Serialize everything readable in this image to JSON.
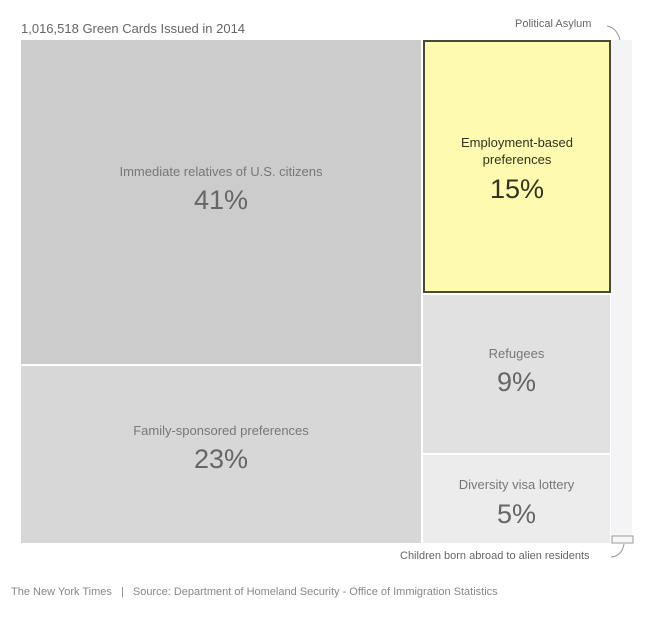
{
  "chart_data": {
    "type": "treemap",
    "title": "1,016,518 Green Cards Issued in 2014",
    "total": 1016518,
    "unit": "percent of green cards",
    "segments": [
      {
        "id": "immediate-relatives",
        "label": "Immediate relatives of U.S. citizens",
        "value": 41,
        "value_label": "41%",
        "color": "#cccccc",
        "highlight": false
      },
      {
        "id": "family-sponsored",
        "label": "Family-sponsored preferences",
        "value": 23,
        "value_label": "23%",
        "color": "#d7d7d7",
        "highlight": false
      },
      {
        "id": "employment-based",
        "label": "Employment-based preferences",
        "value": 15,
        "value_label": "15%",
        "color": "#fefbb0",
        "highlight": true
      },
      {
        "id": "refugees",
        "label": "Refugees",
        "value": 9,
        "value_label": "9%",
        "color": "#e1e1e1",
        "highlight": false
      },
      {
        "id": "diversity-lottery",
        "label": "Diversity visa lottery",
        "value": 5,
        "value_label": "5%",
        "color": "#ececec",
        "highlight": false
      },
      {
        "id": "political-asylum",
        "label": "Political Asylum",
        "value": null,
        "value_label": "",
        "color": "#f4f4f6",
        "highlight": false
      },
      {
        "id": "children-abroad",
        "label": "Children born abroad to alien residents",
        "value": null,
        "value_label": "",
        "color": "#f7f7f7",
        "highlight": false
      }
    ],
    "annotations": [
      "Political Asylum",
      "Children born abroad to alien residents"
    ]
  },
  "footer": {
    "credit": "The New York Times",
    "separator": "|",
    "source": "Source: Department of Homeland Security - Office of Immigration Statistics"
  },
  "colors": {
    "highlight_border": "#4a4a35",
    "highlight_text": "#333322"
  }
}
